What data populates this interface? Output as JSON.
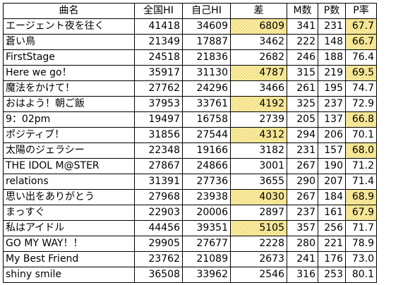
{
  "headers": {
    "name": "曲名",
    "zenkoku": "全国HI",
    "jiko": "自己HI",
    "sa": "差",
    "m": "M数",
    "p": "P数",
    "rate": "P率"
  },
  "highlight_color": "#fff3b0",
  "rows": [
    {
      "name": "エージェント夜を往く",
      "zenkoku": "41418",
      "jiko": "34609",
      "sa": "6809",
      "m": "341",
      "p": "231",
      "rate": "67.7",
      "sa_hl": true,
      "rate_hl": true
    },
    {
      "name": "蒼い鳥",
      "zenkoku": "21349",
      "jiko": "17887",
      "sa": "3462",
      "m": "222",
      "p": "148",
      "rate": "66.7",
      "sa_hl": false,
      "rate_hl": true
    },
    {
      "name": "FirstStage",
      "zenkoku": "24518",
      "jiko": "21836",
      "sa": "2682",
      "m": "246",
      "p": "188",
      "rate": "76.4",
      "sa_hl": false,
      "rate_hl": false
    },
    {
      "name": "Here we go！",
      "zenkoku": "35917",
      "jiko": "31130",
      "sa": "4787",
      "m": "315",
      "p": "219",
      "rate": "69.5",
      "sa_hl": true,
      "rate_hl": true
    },
    {
      "name": "魔法をかけて！",
      "zenkoku": "27762",
      "jiko": "24296",
      "sa": "3466",
      "m": "261",
      "p": "195",
      "rate": "74.7",
      "sa_hl": false,
      "rate_hl": false
    },
    {
      "name": "おはよう！朝ご飯",
      "zenkoku": "37953",
      "jiko": "33761",
      "sa": "4192",
      "m": "325",
      "p": "237",
      "rate": "72.9",
      "sa_hl": true,
      "rate_hl": false
    },
    {
      "name": "9：02pm",
      "zenkoku": "19497",
      "jiko": "16758",
      "sa": "2739",
      "m": "205",
      "p": "137",
      "rate": "66.8",
      "sa_hl": false,
      "rate_hl": true
    },
    {
      "name": "ポジティブ！",
      "zenkoku": "31856",
      "jiko": "27544",
      "sa": "4312",
      "m": "294",
      "p": "206",
      "rate": "70.1",
      "sa_hl": true,
      "rate_hl": false
    },
    {
      "name": "太陽のジェラシー",
      "zenkoku": "22348",
      "jiko": "19166",
      "sa": "3182",
      "m": "231",
      "p": "157",
      "rate": "68.0",
      "sa_hl": false,
      "rate_hl": true
    },
    {
      "name": "THE IDOL M@STER",
      "zenkoku": "27867",
      "jiko": "24866",
      "sa": "3001",
      "m": "267",
      "p": "190",
      "rate": "71.2",
      "sa_hl": false,
      "rate_hl": false
    },
    {
      "name": "relations",
      "zenkoku": "31391",
      "jiko": "27736",
      "sa": "3655",
      "m": "290",
      "p": "207",
      "rate": "71.4",
      "sa_hl": false,
      "rate_hl": false
    },
    {
      "name": "思い出をありがとう",
      "zenkoku": "27968",
      "jiko": "23938",
      "sa": "4030",
      "m": "267",
      "p": "184",
      "rate": "68.9",
      "sa_hl": true,
      "rate_hl": true
    },
    {
      "name": "まっすぐ",
      "zenkoku": "22903",
      "jiko": "20006",
      "sa": "2897",
      "m": "237",
      "p": "161",
      "rate": "67.9",
      "sa_hl": false,
      "rate_hl": true
    },
    {
      "name": "私はアイドル",
      "zenkoku": "44456",
      "jiko": "39351",
      "sa": "5105",
      "m": "357",
      "p": "256",
      "rate": "71.7",
      "sa_hl": true,
      "rate_hl": false
    },
    {
      "name": "GO MY WAY！！",
      "zenkoku": "29905",
      "jiko": "27677",
      "sa": "2228",
      "m": "280",
      "p": "221",
      "rate": "78.9",
      "sa_hl": false,
      "rate_hl": false
    },
    {
      "name": "My Best Friend",
      "zenkoku": "23762",
      "jiko": "21089",
      "sa": "2673",
      "m": "241",
      "p": "176",
      "rate": "73.0",
      "sa_hl": false,
      "rate_hl": false
    },
    {
      "name": "shiny smile",
      "zenkoku": "36508",
      "jiko": "33962",
      "sa": "2546",
      "m": "316",
      "p": "253",
      "rate": "80.1",
      "sa_hl": false,
      "rate_hl": false
    }
  ]
}
